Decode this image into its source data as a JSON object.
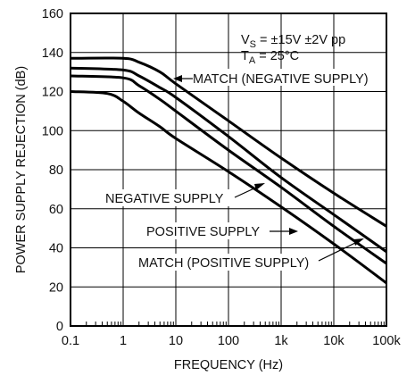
{
  "chart_data": {
    "type": "line",
    "xscale": "log",
    "xlabel": "FREQUENCY (Hz)",
    "ylabel": "POWER SUPPLY REJECTION (dB)",
    "xlim": [
      0.1,
      100000
    ],
    "ylim": [
      0,
      160
    ],
    "grid": true,
    "x_ticks": [
      0.1,
      1,
      10,
      100,
      1000,
      10000,
      100000
    ],
    "x_tick_labels": [
      "0.1",
      "1",
      "10",
      "100",
      "1k",
      "10k",
      "100k"
    ],
    "y_ticks": [
      0,
      20,
      40,
      60,
      80,
      100,
      120,
      140,
      160
    ],
    "y_tick_labels": [
      "0",
      "20",
      "40",
      "60",
      "80",
      "100",
      "120",
      "140",
      "160"
    ],
    "conditions": [
      {
        "main": "V",
        "sub": "S",
        "rest": " = ±15V ±2V pp"
      },
      {
        "main": "T",
        "sub": "A",
        "rest": " = 25°C"
      }
    ],
    "series": [
      {
        "name": "MATCH (NEGATIVE SUPPLY)",
        "x": [
          0.1,
          1,
          2,
          5,
          10,
          100,
          1000,
          10000,
          100000
        ],
        "y": [
          137,
          137,
          135,
          130,
          124,
          105,
          86,
          68,
          51
        ]
      },
      {
        "name": "NEGATIVE SUPPLY",
        "x": [
          0.1,
          1,
          2,
          5,
          10,
          100,
          1000,
          10000,
          100000
        ],
        "y": [
          132,
          131,
          128,
          122,
          117,
          97,
          76,
          57,
          38
        ]
      },
      {
        "name": "POSITIVE SUPPLY",
        "x": [
          0.1,
          1,
          2,
          5,
          10,
          100,
          1000,
          10000,
          100000
        ],
        "y": [
          128,
          127,
          123,
          116,
          110,
          90,
          71,
          51,
          32
        ]
      },
      {
        "name": "MATCH (POSITIVE SUPPLY)",
        "x": [
          0.1,
          0.5,
          1,
          2,
          5,
          10,
          100,
          1000,
          10000,
          100000
        ],
        "y": [
          120,
          119,
          115,
          109,
          102,
          96,
          79,
          61,
          42,
          22
        ]
      }
    ]
  }
}
